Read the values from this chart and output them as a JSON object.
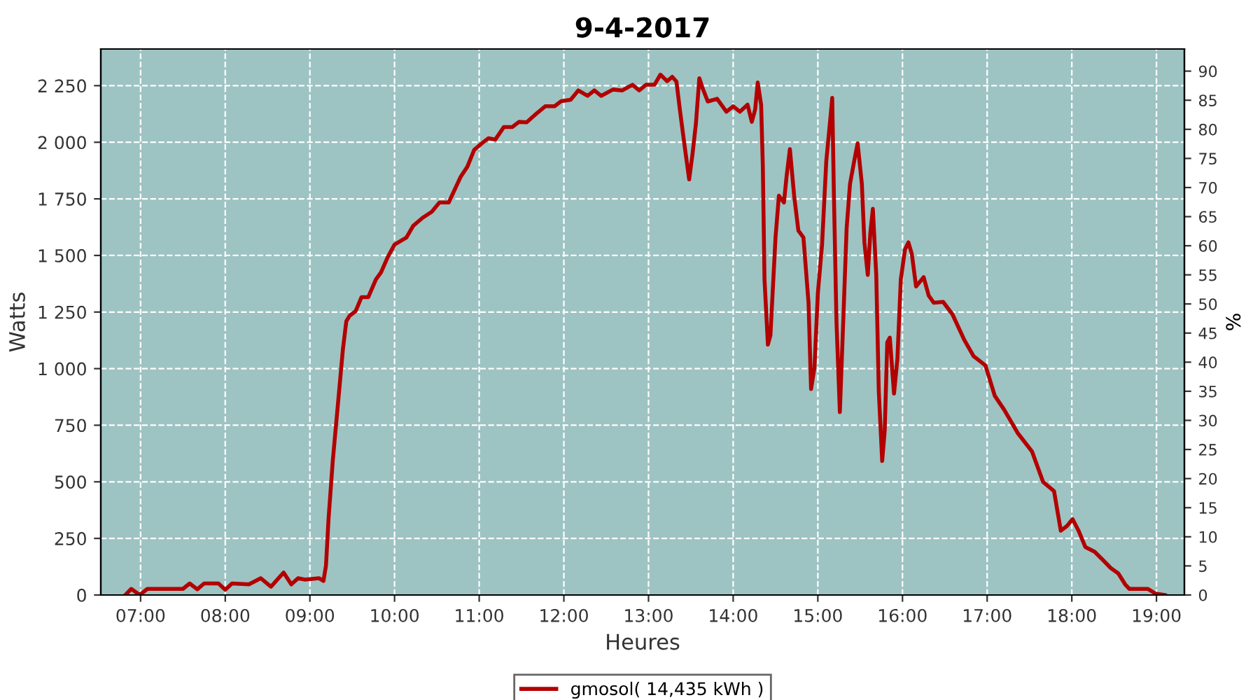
{
  "chart_data": {
    "type": "line",
    "title": "9-4-2017",
    "xlabel": "Heures",
    "ylabel": "Watts",
    "y2label": "%",
    "xlim": [
      6.53,
      19.33
    ],
    "ylim": [
      0,
      2412
    ],
    "y2lim": [
      0,
      93.8
    ],
    "xticks": [
      {
        "value": 7,
        "label": "07:00"
      },
      {
        "value": 8,
        "label": "08:00"
      },
      {
        "value": 9,
        "label": "09:00"
      },
      {
        "value": 10,
        "label": "10:00"
      },
      {
        "value": 11,
        "label": "11:00"
      },
      {
        "value": 12,
        "label": "12:00"
      },
      {
        "value": 13,
        "label": "13:00"
      },
      {
        "value": 14,
        "label": "14:00"
      },
      {
        "value": 15,
        "label": "15:00"
      },
      {
        "value": 16,
        "label": "16:00"
      },
      {
        "value": 17,
        "label": "17:00"
      },
      {
        "value": 18,
        "label": "18:00"
      },
      {
        "value": 19,
        "label": "19:00"
      }
    ],
    "yticks": [
      0,
      250,
      500,
      750,
      {
        "value": 1000,
        "label": "1 000"
      },
      {
        "value": 1250,
        "label": "1 250"
      },
      {
        "value": 1500,
        "label": "1 500"
      },
      {
        "value": 1750,
        "label": "1 750"
      },
      {
        "value": 2000,
        "label": "2 000"
      },
      {
        "value": 2250,
        "label": "2 250"
      }
    ],
    "y2ticks": [
      0,
      5,
      10,
      15,
      20,
      25,
      30,
      35,
      40,
      45,
      50,
      55,
      60,
      65,
      70,
      75,
      80,
      85,
      90
    ],
    "grid": true,
    "legend": "bottom",
    "marker": "none",
    "line_style": "solid",
    "series": [
      {
        "name": "gmosol( 14,435 kWh )",
        "color": "#b30000",
        "x": [
          6.82,
          6.89,
          6.99,
          7.08,
          7.5,
          7.58,
          7.67,
          7.75,
          7.92,
          8.0,
          8.08,
          8.28,
          8.42,
          8.54,
          8.69,
          8.78,
          8.86,
          8.94,
          9.11,
          9.16,
          9.19,
          9.22,
          9.27,
          9.33,
          9.39,
          9.43,
          9.47,
          9.54,
          9.61,
          9.69,
          9.78,
          9.84,
          9.92,
          10.0,
          10.14,
          10.22,
          10.33,
          10.44,
          10.53,
          10.64,
          10.78,
          10.86,
          10.94,
          11.03,
          11.11,
          11.19,
          11.29,
          11.39,
          11.47,
          11.56,
          11.67,
          11.78,
          11.89,
          11.97,
          12.08,
          12.17,
          12.28,
          12.36,
          12.44,
          12.58,
          12.69,
          12.81,
          12.89,
          12.97,
          13.07,
          13.14,
          13.22,
          13.28,
          13.33,
          13.37,
          13.42,
          13.48,
          13.52,
          13.56,
          13.6,
          13.64,
          13.7,
          13.81,
          13.92,
          14.0,
          14.08,
          14.17,
          14.22,
          14.26,
          14.29,
          14.33,
          14.35,
          14.37,
          14.41,
          14.44,
          14.5,
          14.54,
          14.6,
          14.63,
          14.67,
          14.72,
          14.77,
          14.83,
          14.89,
          14.92,
          14.96,
          15.0,
          15.05,
          15.1,
          15.15,
          15.17,
          15.19,
          15.22,
          15.26,
          15.3,
          15.34,
          15.38,
          15.43,
          15.47,
          15.52,
          15.55,
          15.59,
          15.62,
          15.65,
          15.69,
          15.72,
          15.76,
          15.79,
          15.82,
          15.85,
          15.9,
          15.94,
          15.98,
          16.03,
          16.07,
          16.11,
          16.16,
          16.25,
          16.31,
          16.37,
          16.48,
          16.59,
          16.73,
          16.84,
          16.98,
          17.09,
          17.2,
          17.36,
          17.53,
          17.66,
          17.79,
          17.87,
          17.94,
          18.01,
          18.08,
          18.16,
          18.27,
          18.38,
          18.46,
          18.55,
          18.63,
          18.68,
          18.9,
          18.99,
          19.1
        ],
        "values": [
          0,
          27,
          0,
          27,
          27,
          51,
          25,
          51,
          51,
          23,
          51,
          47,
          74,
          37,
          99,
          47,
          74,
          68,
          74,
          62,
          130,
          335,
          592,
          839,
          1086,
          1209,
          1234,
          1254,
          1316,
          1316,
          1394,
          1425,
          1493,
          1548,
          1579,
          1631,
          1666,
          1693,
          1734,
          1734,
          1847,
          1892,
          1966,
          1995,
          2018,
          2012,
          2067,
          2067,
          2090,
          2088,
          2125,
          2159,
          2159,
          2182,
          2188,
          2229,
          2205,
          2229,
          2205,
          2233,
          2229,
          2254,
          2229,
          2254,
          2254,
          2299,
          2270,
          2289,
          2268,
          2145,
          2001,
          1836,
          1949,
          2083,
          2283,
          2238,
          2180,
          2192,
          2135,
          2159,
          2135,
          2166,
          2090,
          2145,
          2264,
          2166,
          1898,
          1394,
          1106,
          1147,
          1579,
          1764,
          1734,
          1847,
          1970,
          1764,
          1610,
          1579,
          1291,
          910,
          1003,
          1332,
          1548,
          1918,
          2114,
          2196,
          1764,
          1209,
          808,
          1209,
          1620,
          1816,
          1918,
          1995,
          1816,
          1558,
          1414,
          1599,
          1706,
          1414,
          900,
          592,
          726,
          1116,
          1137,
          890,
          1044,
          1394,
          1527,
          1558,
          1507,
          1363,
          1404,
          1322,
          1291,
          1295,
          1240,
          1127,
          1055,
          1014,
          880,
          819,
          716,
          634,
          500,
          459,
          284,
          304,
          335,
          284,
          212,
          191,
          150,
          119,
          95,
          47,
          27,
          27,
          6,
          0
        ]
      }
    ]
  }
}
